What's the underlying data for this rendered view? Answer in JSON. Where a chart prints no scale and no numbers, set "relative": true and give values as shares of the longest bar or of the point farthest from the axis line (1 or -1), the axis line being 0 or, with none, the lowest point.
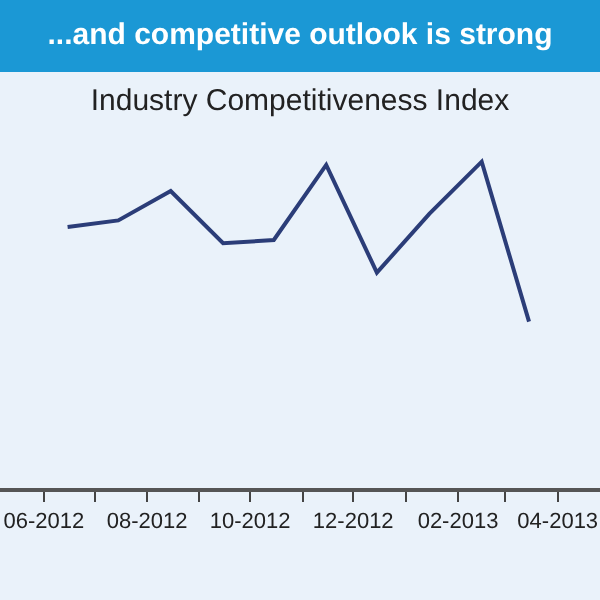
{
  "chart_data": {
    "type": "line",
    "title": "...and competitive outlook is strong",
    "subtitle": "Industry Competitiveness Index",
    "relative": true,
    "x": [
      "2012-06-15",
      "2012-07-15",
      "2012-08-15",
      "2012-09-15",
      "2012-10-15",
      "2012-11-15",
      "2012-12-15",
      "2013-01-15",
      "2013-02-15",
      "2013-03-15"
    ],
    "series": [
      {
        "color": "#2b3d78",
        "values": [
          0.8,
          0.82,
          0.91,
          0.75,
          0.76,
          0.99,
          0.66,
          0.84,
          1,
          0.51
        ]
      }
    ],
    "xlim": [
      "2012-05-06",
      "2013-04-26"
    ],
    "xticks": [
      {
        "value": "2012-06-01",
        "label": "06-2012"
      },
      {
        "value": "2012-07-01",
        "label": null
      },
      {
        "value": "2012-08-01",
        "label": "08-2012"
      },
      {
        "value": "2012-09-01",
        "label": null
      },
      {
        "value": "2012-10-01",
        "label": "10-2012"
      },
      {
        "value": "2012-11-01",
        "label": null
      },
      {
        "value": "2012-12-01",
        "label": "12-2012"
      },
      {
        "value": "2013-01-01",
        "label": null
      },
      {
        "value": "2013-02-01",
        "label": "02-2013"
      },
      {
        "value": "2013-03-01",
        "label": null
      },
      {
        "value": "2013-04-01",
        "label": "04-2013"
      }
    ],
    "grid": false,
    "marker": "none",
    "line_style": "solid"
  }
}
